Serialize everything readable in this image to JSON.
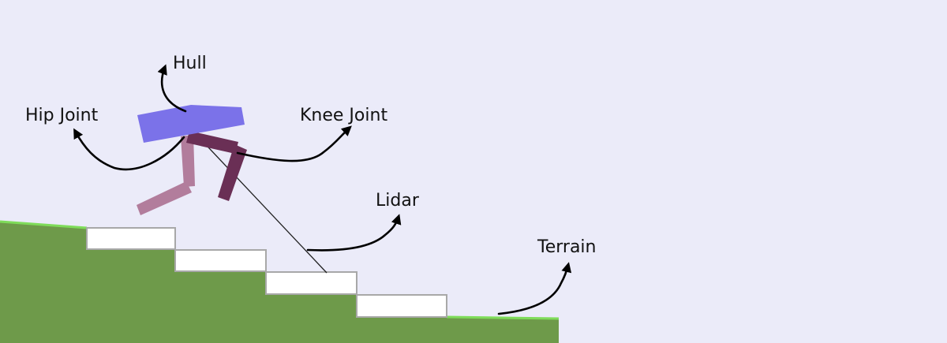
{
  "labels": {
    "hull": "Hull",
    "hip_joint": "Hip Joint",
    "knee_joint": "Knee Joint",
    "lidar": "Lidar",
    "terrain": "Terrain"
  },
  "colors": {
    "sky": "#ebebf9",
    "ground": "#6e9a4a",
    "ground_edge": "#7fdc5a",
    "step_fill": "#ffffff",
    "step_border": "#a8a8a8",
    "hull": "#7b72e9",
    "leg_front": "#b27d9c",
    "leg_back": "#6a2f55",
    "lidar_ray": "#222222",
    "arrow": "#000000"
  },
  "icons": {
    "arrow": "curved-arrow-icon"
  }
}
